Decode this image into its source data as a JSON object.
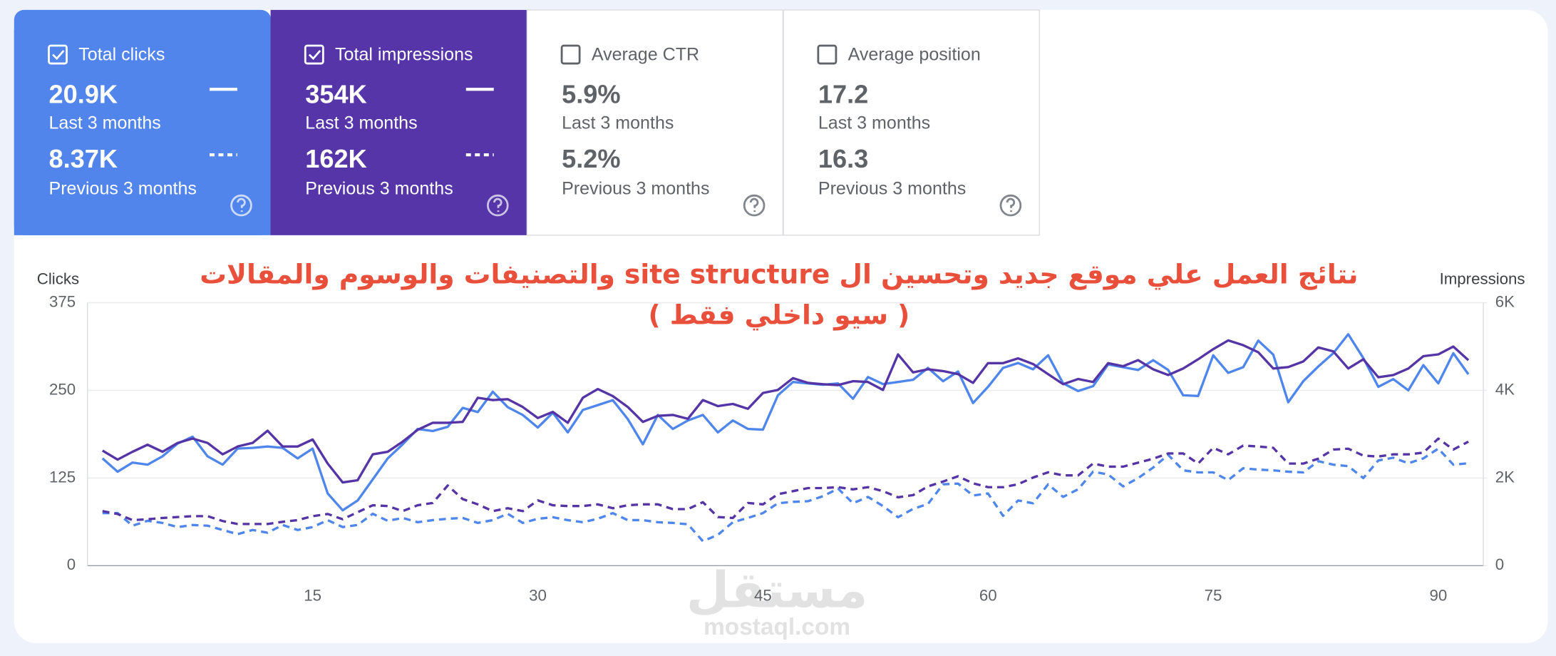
{
  "cards": [
    {
      "title": "Total clicks",
      "checked": true,
      "background": "#5185ec",
      "value": "20.9K",
      "period": "Last 3 months",
      "previous_value": "8.37K",
      "previous_period": "Previous 3 months"
    },
    {
      "title": "Total impressions",
      "checked": true,
      "background": "#5535a8",
      "value": "354K",
      "period": "Last 3 months",
      "previous_value": "162K",
      "previous_period": "Previous 3 months"
    },
    {
      "title": "Average CTR",
      "checked": false,
      "value": "5.9%",
      "period": "Last 3 months",
      "previous_value": "5.2%",
      "previous_period": "Previous 3 months"
    },
    {
      "title": "Average position",
      "checked": false,
      "value": "17.2",
      "period": "Last 3 months",
      "previous_value": "16.3",
      "previous_period": "Previous 3 months"
    }
  ],
  "chart_data": {
    "type": "line",
    "annotation": [
      "نتائج العمل علي موقع جديد وتحسين ال site structure والتصنيفات والوسوم والمقالات",
      "( سيو داخلي فقط )"
    ],
    "ylabel": "Clicks",
    "y2label": "Impressions",
    "x": [
      1,
      2,
      3,
      4,
      5,
      6,
      7,
      8,
      9,
      10,
      11,
      12,
      13,
      14,
      15,
      16,
      17,
      18,
      19,
      20,
      21,
      22,
      23,
      24,
      25,
      26,
      27,
      28,
      29,
      30,
      31,
      32,
      33,
      34,
      35,
      36,
      37,
      38,
      39,
      40,
      41,
      42,
      43,
      44,
      45,
      46,
      47,
      48,
      49,
      50,
      51,
      52,
      53,
      54,
      55,
      56,
      57,
      58,
      59,
      60,
      61,
      62,
      63,
      64,
      65,
      66,
      67,
      68,
      69,
      70,
      71,
      72,
      73,
      74,
      75,
      76,
      77,
      78,
      79,
      80,
      81,
      82,
      83,
      84,
      85,
      86,
      87,
      88,
      89,
      90,
      91,
      92
    ],
    "xlim": [
      0,
      93
    ],
    "xticks": [
      15,
      30,
      45,
      60,
      75,
      90
    ],
    "ylim": [
      0,
      375
    ],
    "yticks": [
      0,
      125,
      250,
      375
    ],
    "y2lim": [
      0,
      6000
    ],
    "y2ticks": [
      0,
      {
        "value": 2000,
        "label": "2K"
      },
      {
        "value": 4000,
        "label": "4K"
      },
      {
        "value": 6000,
        "label": "6K"
      }
    ],
    "grid": true,
    "series": [
      {
        "color": "#4f86ec",
        "dashed": false,
        "axis": "y",
        "values": [
          153,
          134,
          147,
          144,
          156,
          174,
          184,
          156,
          144,
          167,
          168,
          170,
          168,
          153,
          167,
          103,
          79,
          93,
          123,
          153,
          173,
          195,
          192,
          198,
          225,
          219,
          248,
          226,
          215,
          197,
          218,
          190,
          222,
          229,
          236,
          209,
          173,
          215,
          195,
          207,
          215,
          190,
          207,
          195,
          194,
          243,
          262,
          260,
          258,
          260,
          238,
          269,
          259,
          262,
          265,
          282,
          263,
          277,
          232,
          255,
          282,
          289,
          280,
          300,
          260,
          249,
          256,
          287,
          283,
          279,
          293,
          279,
          243,
          242,
          300,
          275,
          283,
          321,
          301,
          233,
          263,
          284,
          303,
          330,
          296,
          255,
          266,
          250,
          286,
          260,
          303,
          273
        ]
      },
      {
        "color": "#5534a6",
        "dashed": false,
        "axis": "y2",
        "values": [
          2626,
          2420,
          2600,
          2760,
          2600,
          2800,
          2900,
          2800,
          2540,
          2720,
          2800,
          3080,
          2720,
          2720,
          2880,
          2330,
          1900,
          1950,
          2540,
          2600,
          2830,
          3100,
          3260,
          3260,
          3280,
          3830,
          3780,
          3800,
          3620,
          3370,
          3510,
          3260,
          3830,
          4030,
          3870,
          3620,
          3280,
          3420,
          3440,
          3350,
          3780,
          3640,
          3690,
          3580,
          3940,
          4010,
          4280,
          4170,
          4140,
          4120,
          4210,
          4190,
          4010,
          4820,
          4410,
          4480,
          4440,
          4370,
          4170,
          4620,
          4620,
          4730,
          4600,
          4370,
          4140,
          4260,
          4190,
          4620,
          4550,
          4690,
          4480,
          4350,
          4500,
          4710,
          4940,
          5140,
          5030,
          4870,
          4500,
          4530,
          4660,
          4980,
          4890,
          4500,
          4710,
          4300,
          4350,
          4500,
          4780,
          4820,
          5000,
          4690
        ]
      },
      {
        "color": "#4f86ec",
        "dashed": true,
        "axis": "y",
        "values": [
          75,
          75,
          57,
          64,
          61,
          55,
          58,
          57,
          51,
          45,
          51,
          47,
          58,
          51,
          55,
          65,
          55,
          58,
          74,
          64,
          68,
          62,
          65,
          67,
          68,
          61,
          65,
          74,
          61,
          67,
          69,
          65,
          62,
          67,
          75,
          65,
          65,
          62,
          61,
          59,
          35,
          44,
          62,
          68,
          75,
          89,
          91,
          92,
          99,
          110,
          89,
          98,
          85,
          69,
          81,
          88,
          116,
          117,
          100,
          103,
          71,
          93,
          89,
          116,
          98,
          109,
          134,
          130,
          113,
          125,
          140,
          158,
          136,
          133,
          133,
          122,
          139,
          137,
          136,
          134,
          133,
          149,
          144,
          142,
          125,
          150,
          154,
          146,
          153,
          167,
          144,
          146
        ]
      },
      {
        "color": "#5534a6",
        "dashed": true,
        "axis": "y2",
        "values": [
          1245,
          1180,
          1040,
          1060,
          1090,
          1110,
          1130,
          1130,
          1020,
          950,
          950,
          950,
          1000,
          1040,
          1130,
          1180,
          1060,
          1220,
          1380,
          1360,
          1245,
          1380,
          1430,
          1830,
          1520,
          1400,
          1245,
          1310,
          1245,
          1490,
          1380,
          1360,
          1360,
          1400,
          1310,
          1380,
          1400,
          1400,
          1290,
          1290,
          1450,
          1110,
          1090,
          1430,
          1400,
          1630,
          1700,
          1770,
          1770,
          1790,
          1740,
          1790,
          1700,
          1560,
          1610,
          1810,
          1920,
          2040,
          1880,
          1790,
          1790,
          1860,
          2010,
          2130,
          2060,
          2060,
          2330,
          2260,
          2260,
          2350,
          2440,
          2560,
          2560,
          2330,
          2690,
          2540,
          2740,
          2720,
          2690,
          2330,
          2330,
          2440,
          2650,
          2670,
          2510,
          2490,
          2540,
          2540,
          2580,
          2900,
          2650,
          2830
        ]
      }
    ]
  },
  "watermark": [
    "مستقل",
    "mostaql.com"
  ]
}
